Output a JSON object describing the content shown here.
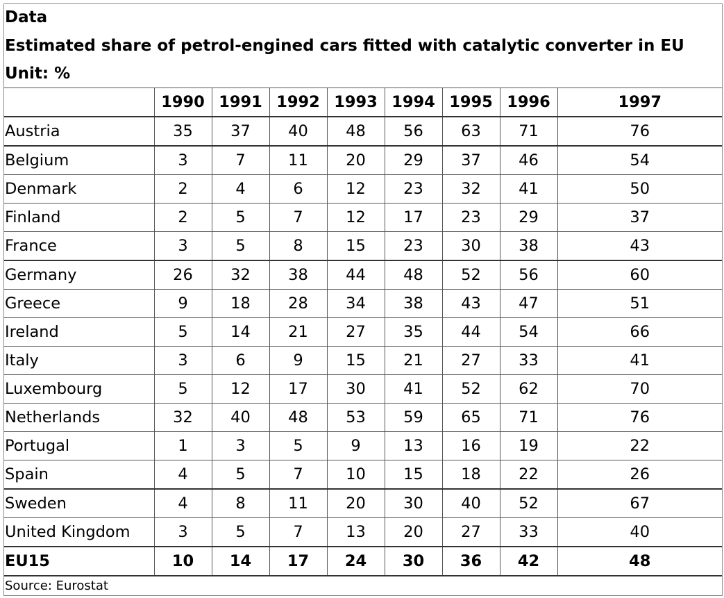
{
  "header": {
    "label": "Data",
    "title": "Estimated share of petrol-engined cars fitted with catalytic converter in EU",
    "unit": "Unit: %"
  },
  "table": {
    "columns": [
      "",
      "1990",
      "1991",
      "1992",
      "1993",
      "1994",
      "1995",
      "1996",
      "1997"
    ],
    "rows": [
      {
        "country": "Austria",
        "values": [
          "35",
          "37",
          "40",
          "48",
          "56",
          "63",
          "71",
          "76"
        ]
      },
      {
        "country": "Belgium",
        "values": [
          "3",
          "7",
          "11",
          "20",
          "29",
          "37",
          "46",
          "54"
        ]
      },
      {
        "country": "Denmark",
        "values": [
          "2",
          "4",
          "6",
          "12",
          "23",
          "32",
          "41",
          "50"
        ]
      },
      {
        "country": "Finland",
        "values": [
          "2",
          "5",
          "7",
          "12",
          "17",
          "23",
          "29",
          "37"
        ]
      },
      {
        "country": "France",
        "values": [
          "3",
          "5",
          "8",
          "15",
          "23",
          "30",
          "38",
          "43"
        ]
      },
      {
        "country": "Germany",
        "values": [
          "26",
          "32",
          "38",
          "44",
          "48",
          "52",
          "56",
          "60"
        ]
      },
      {
        "country": "Greece",
        "values": [
          "9",
          "18",
          "28",
          "34",
          "38",
          "43",
          "47",
          "51"
        ]
      },
      {
        "country": "Ireland",
        "values": [
          "5",
          "14",
          "21",
          "27",
          "35",
          "44",
          "54",
          "66"
        ]
      },
      {
        "country": "Italy",
        "values": [
          "3",
          "6",
          "9",
          "15",
          "21",
          "27",
          "33",
          "41"
        ]
      },
      {
        "country": "Luxembourg",
        "values": [
          "5",
          "12",
          "17",
          "30",
          "41",
          "52",
          "62",
          "70"
        ]
      },
      {
        "country": "Netherlands",
        "values": [
          "32",
          "40",
          "48",
          "53",
          "59",
          "65",
          "71",
          "76"
        ]
      },
      {
        "country": "Portugal",
        "values": [
          "1",
          "3",
          "5",
          "9",
          "13",
          "16",
          "19",
          "22"
        ]
      },
      {
        "country": "Spain",
        "values": [
          "4",
          "5",
          "7",
          "10",
          "15",
          "18",
          "22",
          "26"
        ]
      },
      {
        "country": "Sweden",
        "values": [
          "4",
          "8",
          "11",
          "20",
          "30",
          "40",
          "52",
          "67"
        ]
      },
      {
        "country": "United Kingdom",
        "values": [
          "3",
          "5",
          "7",
          "13",
          "20",
          "27",
          "33",
          "40"
        ]
      }
    ],
    "total": {
      "country": "EU15",
      "values": [
        "10",
        "14",
        "17",
        "24",
        "30",
        "36",
        "42",
        "48"
      ]
    }
  },
  "footer": {
    "source": "Source: Eurostat"
  }
}
